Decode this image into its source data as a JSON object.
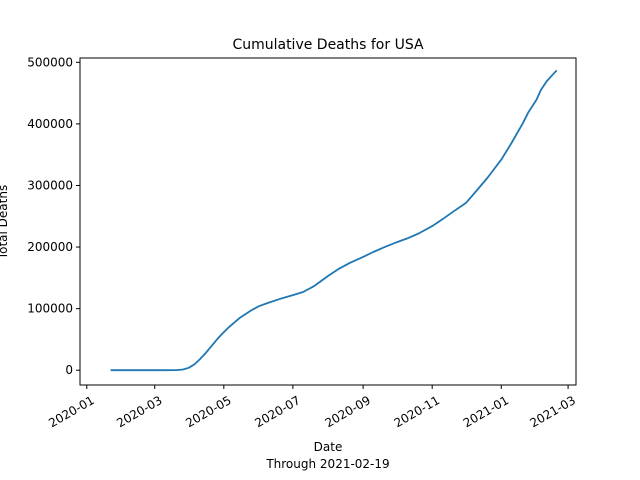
{
  "chart_data": {
    "type": "line",
    "title": "Cumulative Deaths for USA",
    "xlabel": "Date",
    "xlabel_sub": "Through 2021-02-19",
    "ylabel": "Total Deaths",
    "x_ticks": [
      "2020-01",
      "2020-03",
      "2020-05",
      "2020-07",
      "2020-09",
      "2020-11",
      "2021-01",
      "2021-03"
    ],
    "y_ticks": [
      "0",
      "100000",
      "200000",
      "300000",
      "400000",
      "500000"
    ],
    "xlim": [
      "2019-12-26",
      "2021-03-08"
    ],
    "ylim": [
      -24000,
      507000
    ],
    "grid": false,
    "series": [
      {
        "color": "#1f77b4",
        "x": [
          "2020-01-22",
          "2020-02-15",
          "2020-03-10",
          "2020-03-20",
          "2020-03-26",
          "2020-03-31",
          "2020-04-05",
          "2020-04-10",
          "2020-04-15",
          "2020-04-20",
          "2020-04-25",
          "2020-04-30",
          "2020-05-05",
          "2020-05-10",
          "2020-05-15",
          "2020-05-20",
          "2020-05-25",
          "2020-06-01",
          "2020-06-10",
          "2020-06-20",
          "2020-07-01",
          "2020-07-10",
          "2020-07-20",
          "2020-08-01",
          "2020-08-10",
          "2020-08-20",
          "2020-09-01",
          "2020-09-10",
          "2020-09-20",
          "2020-10-01",
          "2020-10-10",
          "2020-10-20",
          "2020-11-01",
          "2020-11-10",
          "2020-11-20",
          "2020-12-01",
          "2020-12-10",
          "2020-12-20",
          "2021-01-01",
          "2021-01-10",
          "2021-01-20",
          "2021-01-25",
          "2021-02-01",
          "2021-02-05",
          "2021-02-10",
          "2021-02-15",
          "2021-02-19"
        ],
        "y": [
          0,
          0,
          40,
          250,
          1200,
          4000,
          9500,
          18000,
          28000,
          39000,
          50000,
          60000,
          69000,
          77000,
          85000,
          91000,
          97000,
          104000,
          110000,
          116000,
          122000,
          127000,
          137000,
          153000,
          164000,
          174000,
          184000,
          192000,
          200000,
          208000,
          214000,
          222000,
          234000,
          245000,
          258000,
          272000,
          291000,
          313000,
          342000,
          369000,
          401000,
          419000,
          439000,
          455000,
          469000,
          479000,
          487000
        ]
      }
    ]
  }
}
